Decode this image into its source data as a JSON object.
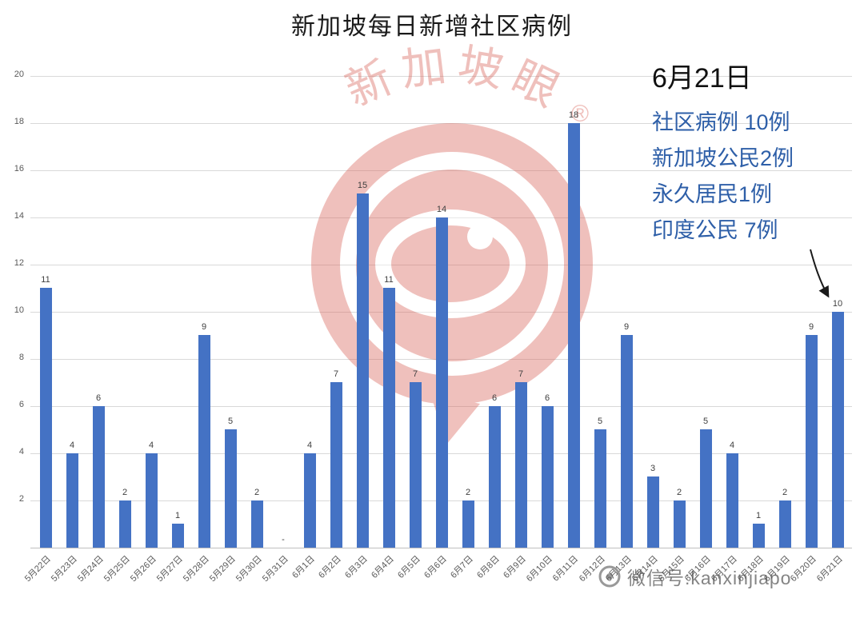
{
  "title": "新加坡每日新增社区病例",
  "annotation": {
    "date": "6月21日",
    "lines": [
      "社区病例 10例",
      "新加坡公民2例",
      "永久居民1例",
      "印度公民 7例"
    ]
  },
  "watermark": {
    "logo_text": "新加坡眼",
    "registered": "®",
    "footer_text": "微信号:kanxinjiapo"
  },
  "colors": {
    "bar": "#4472C4",
    "annotation_text": "#2E5FA8",
    "watermark": "#D96459",
    "gridline": "#D9D9D9"
  },
  "chart_data": {
    "type": "bar",
    "title": "新加坡每日新增社区病例",
    "categories": [
      "5月22日",
      "5月23日",
      "5月24日",
      "5月25日",
      "5月26日",
      "5月27日",
      "5月28日",
      "5月29日",
      "5月30日",
      "5月31日",
      "6月1日",
      "6月2日",
      "6月3日",
      "6月4日",
      "6月5日",
      "6月6日",
      "6月7日",
      "6月8日",
      "6月9日",
      "6月10日",
      "6月11日",
      "6月12日",
      "6月13日",
      "6月14日",
      "6月15日",
      "6月16日",
      "6月17日",
      "6月18日",
      "6月19日",
      "6月20日",
      "6月21日"
    ],
    "values": [
      11,
      4,
      6,
      2,
      4,
      1,
      9,
      5,
      2,
      0,
      4,
      7,
      15,
      11,
      7,
      14,
      2,
      6,
      7,
      6,
      18,
      5,
      9,
      3,
      2,
      5,
      4,
      1,
      2,
      9,
      10
    ],
    "zero_display": "-",
    "xlabel": "",
    "ylabel": "",
    "ylim": [
      0,
      20
    ],
    "ytick_interval": 2,
    "yticks": [
      20,
      18,
      16,
      14,
      12,
      10,
      8,
      6,
      4,
      2
    ],
    "grid": true,
    "legend": false
  }
}
